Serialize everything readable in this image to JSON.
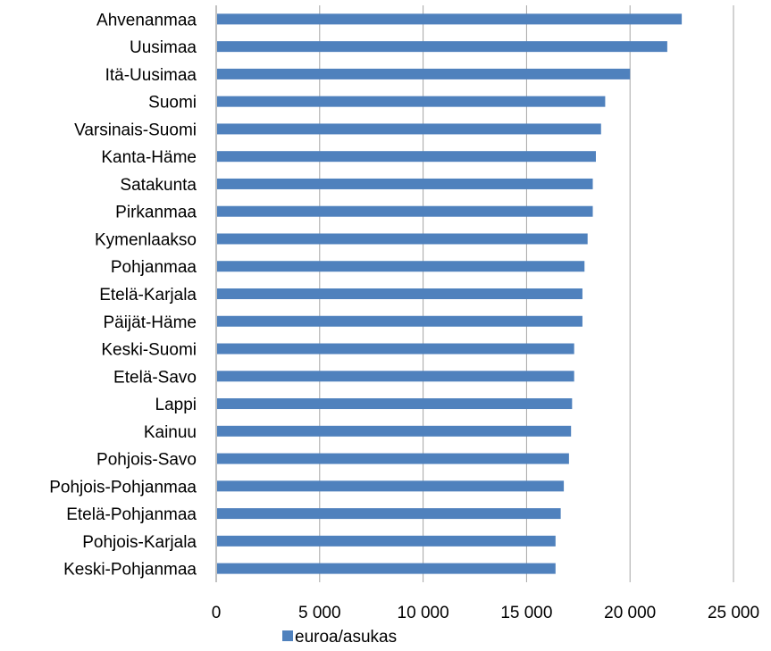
{
  "chart_data": {
    "type": "bar",
    "orientation": "horizontal",
    "categories": [
      "Ahvenanmaa",
      "Uusimaa",
      "Itä-Uusimaa",
      "Suomi",
      "Varsinais-Suomi",
      "Kanta-Häme",
      "Satakunta",
      "Pirkanmaa",
      "Kymenlaakso",
      "Pohjanmaa",
      "Etelä-Karjala",
      "Päijät-Häme",
      "Keski-Suomi",
      "Etelä-Savo",
      "Lappi",
      "Kainuu",
      "Pohjois-Savo",
      "Pohjois-Pohjanmaa",
      "Etelä-Pohjanmaa",
      "Pohjois-Karjala",
      "Keski-Pohjanmaa"
    ],
    "series": [
      {
        "name": "euroa/asukas",
        "color": "#4f81bd",
        "values": [
          22500,
          21800,
          20000,
          18800,
          18600,
          18350,
          18200,
          18200,
          17950,
          17800,
          17700,
          17700,
          17300,
          17300,
          17200,
          17150,
          17050,
          16800,
          16650,
          16400,
          16400
        ]
      }
    ],
    "xlim": [
      0,
      25000
    ],
    "xticks": [
      0,
      5000,
      10000,
      15000,
      20000,
      25000
    ],
    "xtick_labels": [
      "0",
      "5 000",
      "10 000",
      "15 000",
      "20 000",
      "25 000"
    ],
    "grid": "vertical",
    "legend": {
      "position": "bottom-left",
      "entries": [
        "euroa/asukas"
      ]
    },
    "title": "",
    "xlabel": "",
    "ylabel": ""
  }
}
